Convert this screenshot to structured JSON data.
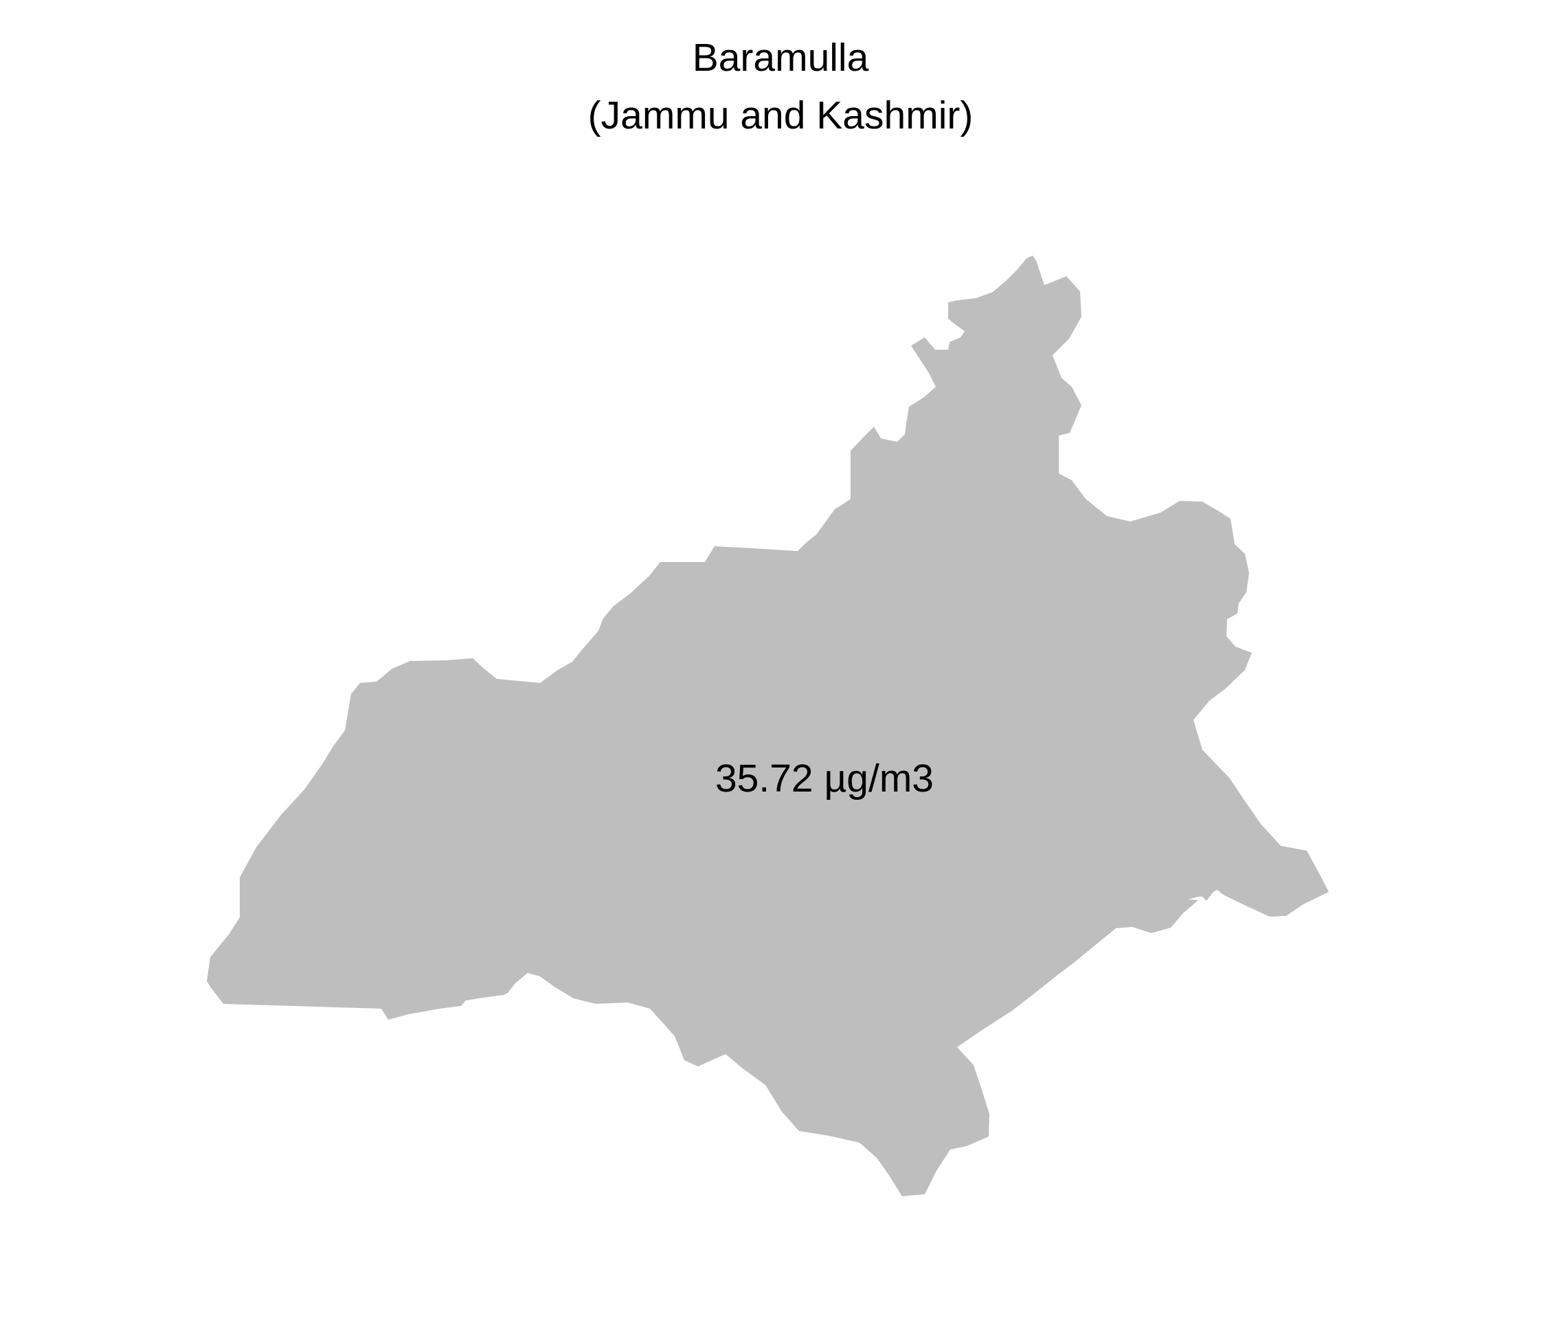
{
  "map": {
    "district": "Baramulla",
    "state": "(Jammu and Kashmir)",
    "value_label": "35.72 µg/m3",
    "fill_color": "#bebebe",
    "background_color": "#ffffff"
  }
}
